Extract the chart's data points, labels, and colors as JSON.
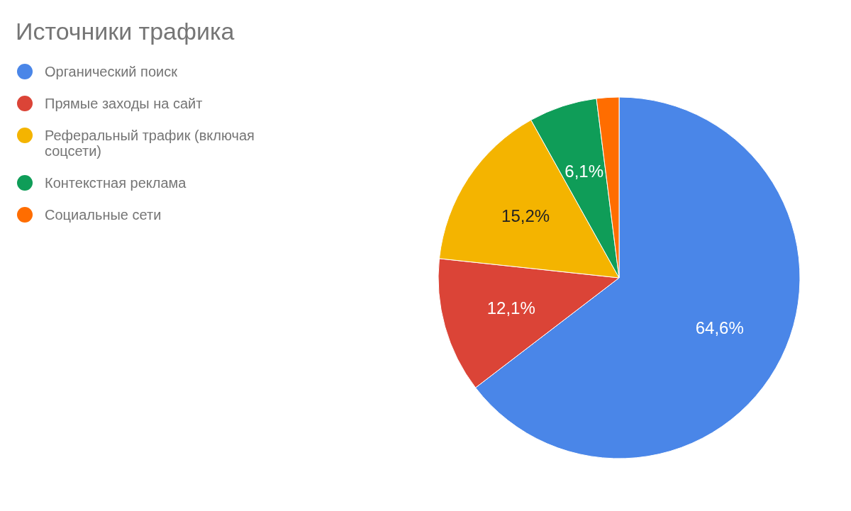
{
  "chart_data": {
    "type": "pie",
    "title": "Источники трафика",
    "categories": [
      "Органический поиск",
      "Прямые заходы на сайт",
      "Реферальный трафик (включая соцсети)",
      "Контекстная реклама",
      "Социальные сети"
    ],
    "values": [
      64.6,
      12.1,
      15.2,
      6.1,
      2.0
    ],
    "colors": [
      "#4a86e8",
      "#db4437",
      "#f4b400",
      "#0f9d58",
      "#ff6d00"
    ],
    "value_labels": [
      "64,6%",
      "12,1%",
      "15,2%",
      "6,1%",
      null
    ],
    "legend": "left"
  }
}
